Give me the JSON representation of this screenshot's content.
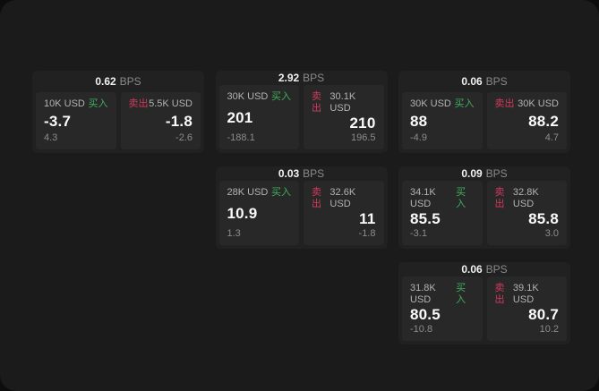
{
  "labels": {
    "bps_suffix": "BPS",
    "buy": "买入",
    "sell": "卖出"
  },
  "colors": {
    "page_bg": "#0d0d0d",
    "panel_bg": "#1b1b1b",
    "card_bg": "#212121",
    "subcard_bg": "#282828",
    "buy_green": "#3fae5e",
    "sell_red": "#cf3a5c"
  },
  "cards": [
    {
      "bps": "0.62",
      "buy": {
        "amount": "10K USD",
        "value": "-3.7",
        "delta": "4.3"
      },
      "sell": {
        "amount": "5.5K USD",
        "value": "-1.8",
        "delta": "-2.6"
      }
    },
    {
      "bps": "2.92",
      "buy": {
        "amount": "30K USD",
        "value": "201",
        "delta": "-188.1"
      },
      "sell": {
        "amount": "30.1K USD",
        "value": "210",
        "delta": "196.5"
      }
    },
    {
      "bps": "0.06",
      "buy": {
        "amount": "30K USD",
        "value": "88",
        "delta": "-4.9"
      },
      "sell": {
        "amount": "30K USD",
        "value": "88.2",
        "delta": "4.7"
      }
    },
    {
      "bps": "0.03",
      "buy": {
        "amount": "28K USD",
        "value": "10.9",
        "delta": "1.3"
      },
      "sell": {
        "amount": "32.6K USD",
        "value": "11",
        "delta": "-1.8"
      }
    },
    {
      "bps": "0.09",
      "buy": {
        "amount": "34.1K USD",
        "value": "85.5",
        "delta": "-3.1"
      },
      "sell": {
        "amount": "32.8K USD",
        "value": "85.8",
        "delta": "3.0"
      }
    },
    {
      "bps": "0.06",
      "buy": {
        "amount": "31.8K USD",
        "value": "80.5",
        "delta": "-10.8"
      },
      "sell": {
        "amount": "39.1K USD",
        "value": "80.7",
        "delta": "10.2"
      }
    }
  ]
}
